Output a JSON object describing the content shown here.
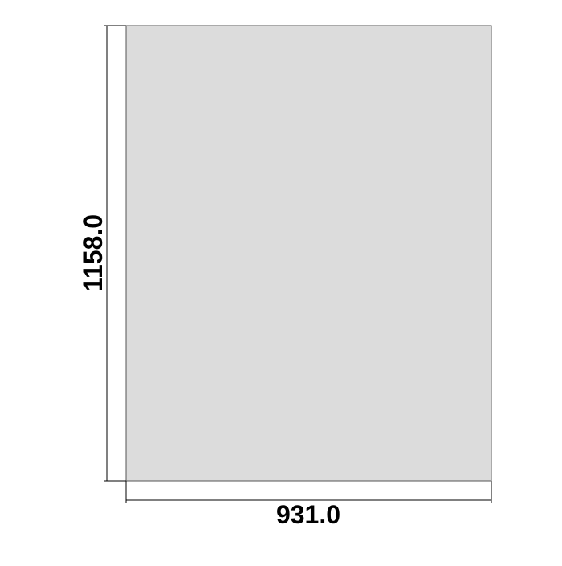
{
  "panel": {
    "fill_color": "#dcdcdc",
    "outline_color": "#555555"
  },
  "dimensions": {
    "width_label": "931.0",
    "height_label": "1158.0",
    "line_color": "#000000"
  }
}
